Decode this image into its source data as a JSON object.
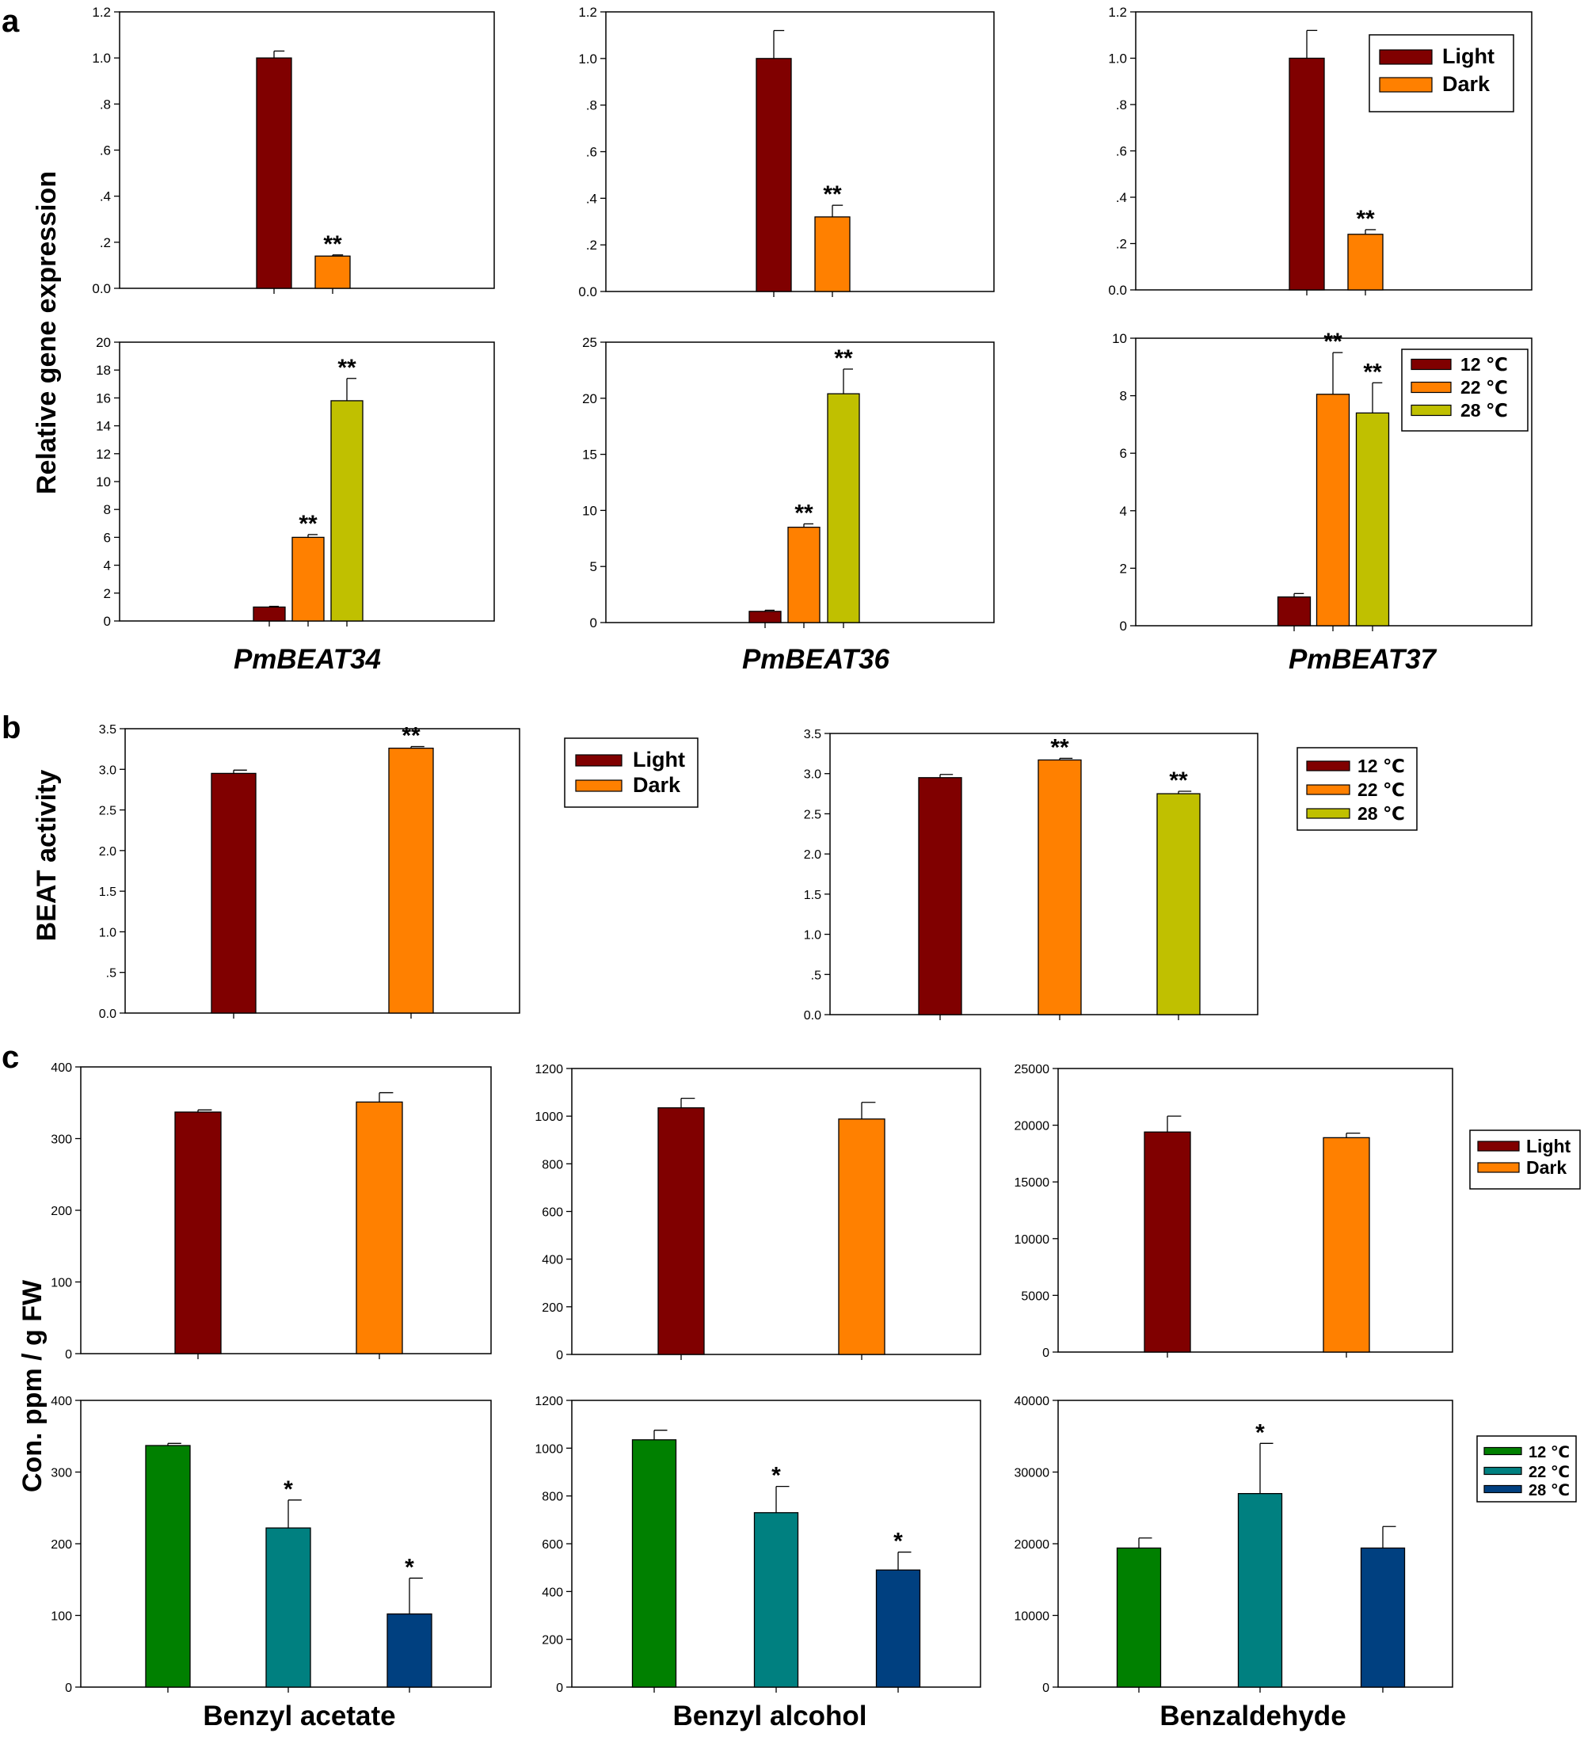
{
  "figure": {
    "panel_letters": [
      "a",
      "b",
      "c"
    ],
    "ylabels": {
      "a": "Relative gene expression",
      "b": "BEAT activity",
      "c": "Con. ppm / g FW"
    },
    "gene_labels": [
      "PmBEAT34",
      "PmBEAT36",
      "PmBEAT37"
    ],
    "compound_labels": [
      "Benzyl acetate",
      "Benzyl alcohol",
      "Benzaldehyde"
    ]
  },
  "colors": {
    "light": "#800000",
    "dark": "#ff8000",
    "t12": "#800000",
    "t22": "#ff8000",
    "t28": "#c0c000",
    "t12c": "#008000",
    "t22c": "#008080",
    "t28c": "#004080"
  },
  "legends": {
    "light_dark": [
      "Light",
      "Dark"
    ],
    "temp": [
      "12 ℃",
      "22 ℃",
      "28 ℃"
    ]
  },
  "chart_data": [
    {
      "id": "a1",
      "type": "bar",
      "panel": "a",
      "title": "PmBEAT34 light/dark",
      "categories": [
        "Light",
        "Dark"
      ],
      "values": [
        1.0,
        0.14
      ],
      "errors": [
        0.03,
        0.005
      ],
      "significance": [
        "",
        "**"
      ],
      "ylim": [
        0,
        1.2
      ],
      "yticks": [
        0,
        0.2,
        0.4,
        0.6,
        0.8,
        1.0,
        1.2
      ],
      "ytick_labels": [
        "0.0",
        ".2",
        ".4",
        ".6",
        ".8",
        "1.0",
        "1.2"
      ],
      "colors": [
        "light",
        "dark"
      ]
    },
    {
      "id": "a2",
      "type": "bar",
      "panel": "a",
      "title": "PmBEAT36 light/dark",
      "categories": [
        "Light",
        "Dark"
      ],
      "values": [
        1.0,
        0.32
      ],
      "errors": [
        0.12,
        0.05
      ],
      "significance": [
        "",
        "**"
      ],
      "ylim": [
        0,
        1.2
      ],
      "yticks": [
        0,
        0.2,
        0.4,
        0.6,
        0.8,
        1.0,
        1.2
      ],
      "ytick_labels": [
        "0.0",
        ".2",
        ".4",
        ".6",
        ".8",
        "1.0",
        "1.2"
      ],
      "colors": [
        "light",
        "dark"
      ]
    },
    {
      "id": "a3",
      "type": "bar",
      "panel": "a",
      "title": "PmBEAT37 light/dark",
      "categories": [
        "Light",
        "Dark"
      ],
      "values": [
        1.0,
        0.24
      ],
      "errors": [
        0.12,
        0.02
      ],
      "significance": [
        "",
        "**"
      ],
      "ylim": [
        0,
        1.2
      ],
      "yticks": [
        0,
        0.2,
        0.4,
        0.6,
        0.8,
        1.0,
        1.2
      ],
      "ytick_labels": [
        "0.0",
        ".2",
        ".4",
        ".6",
        ".8",
        "1.0",
        "1.2"
      ],
      "colors": [
        "light",
        "dark"
      ],
      "legend": "light_dark"
    },
    {
      "id": "a4",
      "type": "bar",
      "panel": "a",
      "title": "PmBEAT34 temperature",
      "categories": [
        "12 ℃",
        "22 ℃",
        "28 ℃"
      ],
      "values": [
        1.0,
        6.0,
        15.8
      ],
      "errors": [
        0.05,
        0.2,
        1.6
      ],
      "significance": [
        "",
        "**",
        "**"
      ],
      "ylim": [
        0,
        20
      ],
      "yticks": [
        0,
        2,
        4,
        6,
        8,
        10,
        12,
        14,
        16,
        18,
        20
      ],
      "ytick_labels": [
        "0",
        "2",
        "4",
        "6",
        "8",
        "10",
        "12",
        "14",
        "16",
        "18",
        "20"
      ],
      "colors": [
        "t12",
        "t22",
        "t28"
      ]
    },
    {
      "id": "a5",
      "type": "bar",
      "panel": "a",
      "title": "PmBEAT36 temperature",
      "categories": [
        "12 ℃",
        "22 ℃",
        "28 ℃"
      ],
      "values": [
        1.0,
        8.5,
        20.4
      ],
      "errors": [
        0.1,
        0.3,
        2.2
      ],
      "significance": [
        "",
        "**",
        "**"
      ],
      "ylim": [
        0,
        25
      ],
      "yticks": [
        0,
        5,
        10,
        15,
        20,
        25
      ],
      "ytick_labels": [
        "0",
        "5",
        "10",
        "15",
        "20",
        "25"
      ],
      "colors": [
        "t12",
        "t22",
        "t28"
      ]
    },
    {
      "id": "a6",
      "type": "bar",
      "panel": "a",
      "title": "PmBEAT37 temperature",
      "categories": [
        "12 ℃",
        "22 ℃",
        "28 ℃"
      ],
      "values": [
        1.0,
        8.05,
        7.4
      ],
      "errors": [
        0.12,
        1.45,
        1.05
      ],
      "significance": [
        "",
        "**",
        "**"
      ],
      "ylim": [
        0,
        10
      ],
      "yticks": [
        0,
        2,
        4,
        6,
        8,
        10
      ],
      "ytick_labels": [
        "0",
        "2",
        "4",
        "6",
        "8",
        "10"
      ],
      "colors": [
        "t12",
        "t22",
        "t28"
      ],
      "legend": "temp"
    },
    {
      "id": "b1",
      "type": "bar",
      "panel": "b",
      "title": "BEAT activity light/dark",
      "categories": [
        "Light",
        "Dark"
      ],
      "values": [
        2.95,
        3.26
      ],
      "errors": [
        0.04,
        0.02
      ],
      "significance": [
        "",
        "**"
      ],
      "ylim": [
        0,
        3.5
      ],
      "yticks": [
        0,
        0.5,
        1,
        1.5,
        2,
        2.5,
        3,
        3.5
      ],
      "ytick_labels": [
        "0.0",
        ".5",
        "1.0",
        "1.5",
        "2.0",
        "2.5",
        "3.0",
        "3.5"
      ],
      "colors": [
        "light",
        "dark"
      ]
    },
    {
      "id": "b2",
      "type": "bar",
      "panel": "b",
      "title": "BEAT activity temperature",
      "categories": [
        "12 ℃",
        "22 ℃",
        "28 ℃"
      ],
      "values": [
        2.95,
        3.17,
        2.75
      ],
      "errors": [
        0.04,
        0.02,
        0.03
      ],
      "significance": [
        "",
        "**",
        "**"
      ],
      "ylim": [
        0,
        3.5
      ],
      "yticks": [
        0,
        0.5,
        1,
        1.5,
        2,
        2.5,
        3,
        3.5
      ],
      "ytick_labels": [
        "0.0",
        ".5",
        "1.0",
        "1.5",
        "2.0",
        "2.5",
        "3.0",
        "3.5"
      ],
      "colors": [
        "t12",
        "t22",
        "t28"
      ]
    },
    {
      "id": "c1",
      "type": "bar",
      "panel": "c",
      "title": "Benzyl acetate light/dark",
      "categories": [
        "Light",
        "Dark"
      ],
      "values": [
        337,
        351
      ],
      "errors": [
        3,
        13
      ],
      "significance": [
        "",
        ""
      ],
      "ylim": [
        0,
        400
      ],
      "yticks": [
        0,
        100,
        200,
        300,
        400
      ],
      "ytick_labels": [
        "0",
        "100",
        "200",
        "300",
        "400"
      ],
      "colors": [
        "light",
        "dark"
      ]
    },
    {
      "id": "c2",
      "type": "bar",
      "panel": "c",
      "title": "Benzyl alcohol light/dark",
      "categories": [
        "Light",
        "Dark"
      ],
      "values": [
        1035,
        988
      ],
      "errors": [
        40,
        70
      ],
      "significance": [
        "",
        ""
      ],
      "ylim": [
        0,
        1200
      ],
      "yticks": [
        0,
        200,
        400,
        600,
        800,
        1000,
        1200
      ],
      "ytick_labels": [
        "0",
        "200",
        "400",
        "600",
        "800",
        "1000",
        "1200"
      ],
      "colors": [
        "light",
        "dark"
      ]
    },
    {
      "id": "c3",
      "type": "bar",
      "panel": "c",
      "title": "Benzaldehyde light/dark",
      "categories": [
        "Light",
        "Dark"
      ],
      "values": [
        19400,
        18900
      ],
      "errors": [
        1400,
        400
      ],
      "significance": [
        "",
        ""
      ],
      "ylim": [
        0,
        25000
      ],
      "yticks": [
        0,
        5000,
        10000,
        15000,
        20000,
        25000
      ],
      "ytick_labels": [
        "0",
        "5000",
        "10000",
        "15000",
        "20000",
        "25000"
      ],
      "colors": [
        "light",
        "dark"
      ]
    },
    {
      "id": "c4",
      "type": "bar",
      "panel": "c",
      "title": "Benzyl acetate temperature",
      "categories": [
        "12 ℃",
        "22 ℃",
        "28 ℃"
      ],
      "values": [
        337,
        222,
        102
      ],
      "errors": [
        3,
        39,
        50
      ],
      "significance": [
        "",
        "*",
        "*"
      ],
      "ylim": [
        0,
        400
      ],
      "yticks": [
        0,
        100,
        200,
        300,
        400
      ],
      "ytick_labels": [
        "0",
        "100",
        "200",
        "300",
        "400"
      ],
      "colors": [
        "t12c",
        "t22c",
        "t28c"
      ]
    },
    {
      "id": "c5",
      "type": "bar",
      "panel": "c",
      "title": "Benzyl alcohol temperature",
      "categories": [
        "12 ℃",
        "22 ℃",
        "28 ℃"
      ],
      "values": [
        1035,
        730,
        490
      ],
      "errors": [
        40,
        110,
        75
      ],
      "significance": [
        "",
        "*",
        "*"
      ],
      "ylim": [
        0,
        1200
      ],
      "yticks": [
        0,
        200,
        400,
        600,
        800,
        1000,
        1200
      ],
      "ytick_labels": [
        "0",
        "200",
        "400",
        "600",
        "800",
        "1000",
        "1200"
      ],
      "colors": [
        "t12c",
        "t22c",
        "t28c"
      ]
    },
    {
      "id": "c6",
      "type": "bar",
      "panel": "c",
      "title": "Benzaldehyde temperature",
      "categories": [
        "12 ℃",
        "22 ℃",
        "28 ℃"
      ],
      "values": [
        19400,
        27000,
        19400
      ],
      "errors": [
        1400,
        7000,
        3000
      ],
      "significance": [
        "",
        "*",
        ""
      ],
      "ylim": [
        0,
        40000
      ],
      "yticks": [
        0,
        10000,
        20000,
        30000,
        40000
      ],
      "ytick_labels": [
        "0",
        "10000",
        "20000",
        "30000",
        "40000"
      ],
      "colors": [
        "t12c",
        "t22c",
        "t28c"
      ]
    }
  ]
}
